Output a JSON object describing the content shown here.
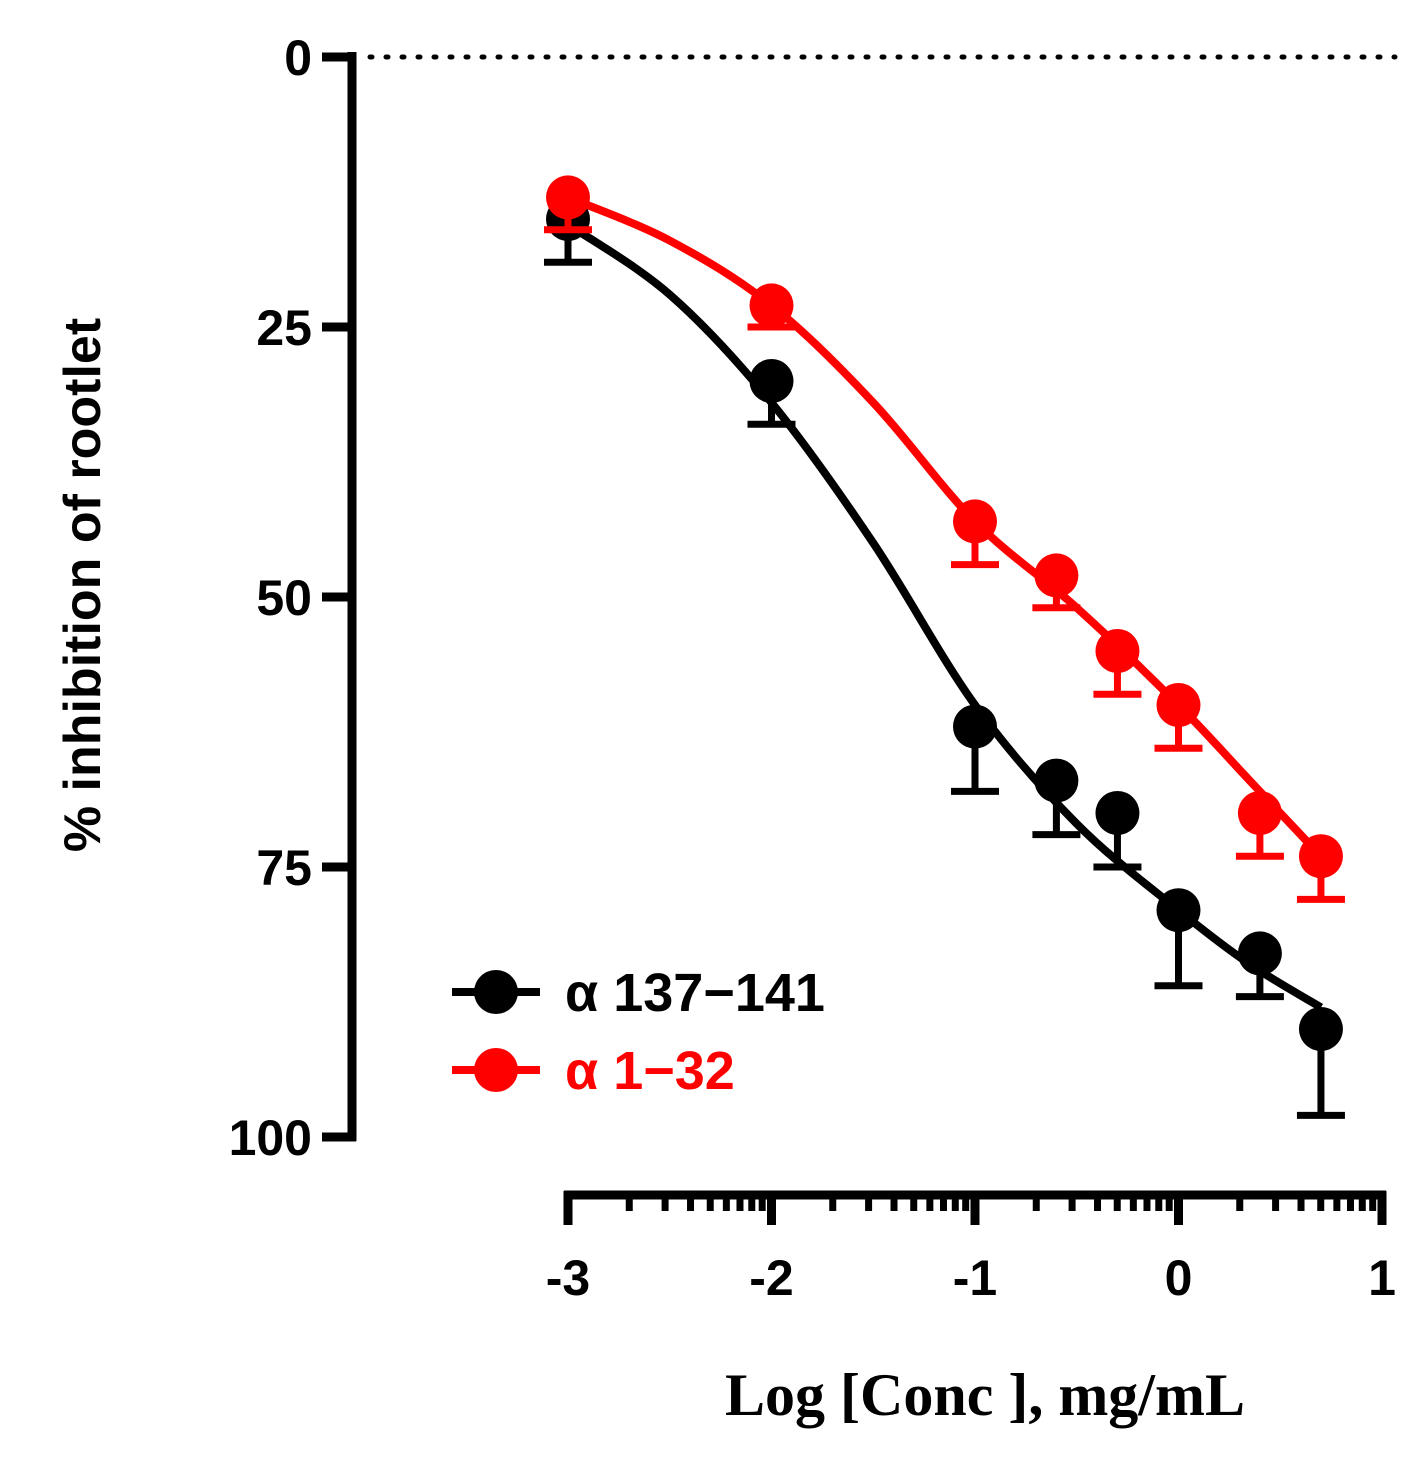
{
  "chart_data": {
    "type": "scatter",
    "xlabel": "Log [Conc ], mg/mL",
    "ylabel": "% inhibition of rootlet",
    "xlim": [
      -3,
      1
    ],
    "ylim": [
      0,
      100
    ],
    "y_inverted": true,
    "x_ticks": [
      "-3",
      "-2",
      "-1",
      "0",
      "1"
    ],
    "x_tick_values": [
      -3,
      -2,
      -1,
      0,
      1
    ],
    "x_minor_ticks": "log-spaced within each decade",
    "y_ticks": [
      "0",
      "25",
      "50",
      "75",
      "100"
    ],
    "y_tick_values": [
      0,
      25,
      50,
      75,
      100
    ],
    "reference_line": {
      "y": 0,
      "style": "dotted"
    },
    "grid": false,
    "legend_position": "bottom-left",
    "series": [
      {
        "name": "α 137−141",
        "color": "#000000",
        "x": [
          -3,
          -2,
          -1,
          -0.6,
          -0.3,
          0,
          0.4,
          0.7
        ],
        "y": [
          15,
          30,
          62,
          67,
          70,
          79,
          83,
          90
        ],
        "error": [
          4,
          4,
          6,
          5,
          5,
          7,
          4,
          8
        ],
        "fit": {
          "x": [
            -3,
            -2.5,
            -2,
            -1.5,
            -1,
            -0.5,
            0,
            0.35,
            0.7
          ],
          "y": [
            15.5,
            22,
            32,
            45,
            60,
            71,
            79,
            84,
            88
          ]
        }
      },
      {
        "name": "α 1−32",
        "color": "#ff0000",
        "x": [
          -3,
          -2,
          -1,
          -0.6,
          -0.3,
          0,
          0.4,
          0.7
        ],
        "y": [
          13,
          23,
          43,
          48,
          55,
          60,
          70,
          74
        ],
        "error": [
          3,
          2,
          4,
          3,
          4,
          4,
          4,
          4
        ],
        "fit": {
          "x": [
            -3,
            -2.5,
            -2,
            -1.5,
            -1,
            -0.5,
            0,
            0.35,
            0.7
          ],
          "y": [
            13,
            17,
            23,
            32,
            43,
            51,
            60,
            67,
            74
          ]
        }
      }
    ]
  }
}
